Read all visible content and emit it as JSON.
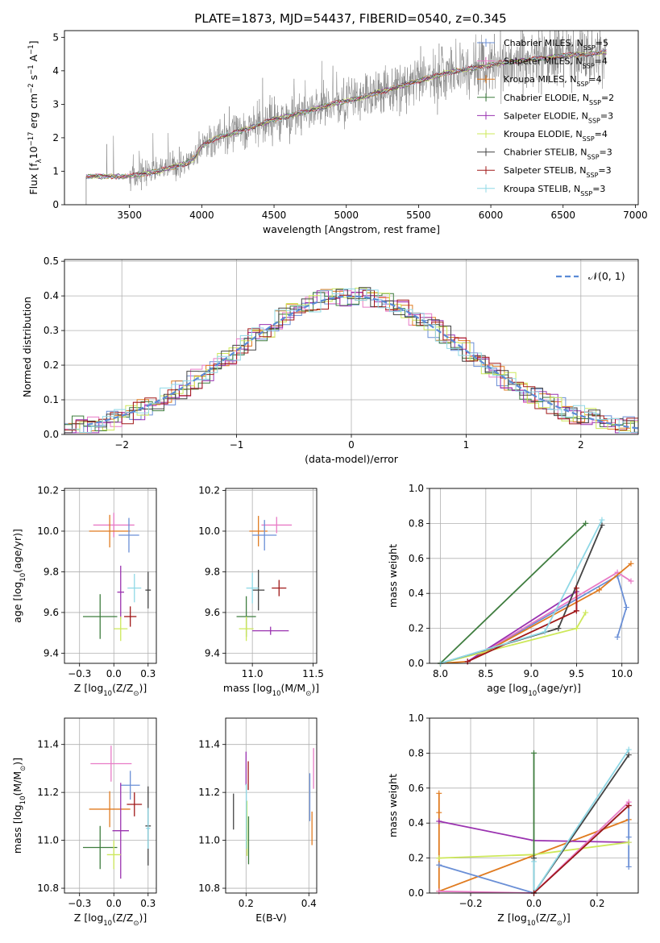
{
  "figure": {
    "title": "PLATE=1873, MJD=54437, FIBERID=0540, z=0.345"
  },
  "colors": {
    "Chabrier MILES": "#6a8fd6",
    "Salpeter MILES": "#e87bc6",
    "Kroupa MILES": "#e07b20",
    "Chabrier ELODIE": "#3f7d3f",
    "Salpeter ELODIE": "#9a32b0",
    "Kroupa ELODIE": "#cde85a",
    "Chabrier STELIB": "#444444",
    "Salpeter STELIB": "#a01818",
    "Kroupa STELIB": "#8fd8e6",
    "data": "#808080",
    "gaussian": "#5b8bd6"
  },
  "chart_data": [
    {
      "id": "spectrum",
      "type": "line",
      "title": "PLATE=1873, MJD=54437, FIBERID=0540, z=0.345",
      "xlabel": "wavelength [Angstrom, rest frame]",
      "ylabel_parts": [
        "Flux [f",
        "λ",
        "10",
        "−17",
        " erg cm",
        "−2",
        " s",
        "−1",
        " A",
        "−1",
        "]"
      ],
      "xlim": [
        3050,
        7020
      ],
      "ylim": [
        0,
        5.2
      ],
      "xticks": [
        3500,
        4000,
        4500,
        5000,
        5500,
        6000,
        6500,
        7000
      ],
      "yticks": [
        0,
        1,
        2,
        3,
        4,
        5
      ],
      "data_range": [
        3200,
        6800
      ],
      "continuum": {
        "x": [
          3200,
          3500,
          3700,
          3900,
          3950,
          4000,
          4100,
          4200,
          4300,
          4500,
          4700,
          4900,
          5100,
          5300,
          5500,
          5700,
          5900,
          6100,
          6300,
          6500,
          6800
        ],
        "y": [
          0.85,
          0.85,
          1.0,
          1.25,
          1.4,
          1.75,
          2.0,
          2.1,
          2.25,
          2.55,
          2.75,
          3.0,
          3.2,
          3.45,
          3.7,
          3.95,
          4.1,
          4.25,
          4.35,
          4.45,
          4.55
        ]
      },
      "legend": [
        {
          "name": "Chabrier MILES",
          "nssp": "5"
        },
        {
          "name": "Salpeter MILES",
          "nssp": "4"
        },
        {
          "name": "Kroupa MILES",
          "nssp": "4"
        },
        {
          "name": "Chabrier ELODIE",
          "nssp": "2"
        },
        {
          "name": "Salpeter ELODIE",
          "nssp": "3"
        },
        {
          "name": "Kroupa ELODIE",
          "nssp": "4"
        },
        {
          "name": "Chabrier STELIB",
          "nssp": "3"
        },
        {
          "name": "Salpeter STELIB",
          "nssp": "3"
        },
        {
          "name": "Kroupa STELIB",
          "nssp": "3"
        }
      ],
      "legend_label": "N",
      "legend_sub": "SSP",
      "legend_placement": "right"
    },
    {
      "id": "residual-histogram",
      "type": "line",
      "xlabel": "(data-model)/error",
      "ylabel": "Normed distribution",
      "xlim": [
        -2.5,
        2.5
      ],
      "ylim": [
        0,
        0.505
      ],
      "xticks": [
        -2,
        -1,
        0,
        1,
        2
      ],
      "yticks": [
        0.0,
        0.1,
        0.2,
        0.3,
        0.4,
        0.5
      ],
      "grid": true,
      "legend": "𝒩(0, 1)",
      "legend_placement": "top-right"
    },
    {
      "id": "age-vs-Z",
      "type": "scatter",
      "xlabel_parts": [
        "Z [log",
        "10",
        "(Z/Z",
        "⊙",
        ")]"
      ],
      "ylabel_parts": [
        "age  [log",
        "10",
        "(age/yr)]"
      ],
      "xlim": [
        -0.36,
        0.31
      ],
      "ylim": [
        9.35,
        10.21
      ],
      "xticks": [
        -0.25,
        0.0,
        0.25
      ],
      "yticks": [
        9.4,
        9.6,
        9.8,
        10.0,
        10.2
      ],
      "grid": true,
      "points": [
        {
          "model": "Salpeter MILES",
          "x": 0.0,
          "y": 10.03,
          "dx": 0.3,
          "dy": 0.12
        },
        {
          "model": "Kroupa MILES",
          "x": -0.03,
          "y": 10.0,
          "dx": 0.3,
          "dy": 0.16
        },
        {
          "model": "Chabrier MILES",
          "x": 0.11,
          "y": 9.98,
          "dx": 0.15,
          "dy": 0.17
        },
        {
          "model": "Chabrier STELIB",
          "x": 0.25,
          "y": 9.71,
          "dx": 0.04,
          "dy": 0.18
        },
        {
          "model": "Kroupa STELIB",
          "x": 0.15,
          "y": 9.72,
          "dx": 0.1,
          "dy": 0.14
        },
        {
          "model": "Salpeter ELODIE",
          "x": 0.05,
          "y": 9.7,
          "dx": 0.05,
          "dy": 0.26
        },
        {
          "model": "Chabrier ELODIE",
          "x": -0.1,
          "y": 9.58,
          "dx": 0.25,
          "dy": 0.22
        },
        {
          "model": "Kroupa ELODIE",
          "x": 0.05,
          "y": 9.52,
          "dx": 0.1,
          "dy": 0.12
        },
        {
          "model": "Salpeter STELIB",
          "x": 0.12,
          "y": 9.58,
          "dx": 0.09,
          "dy": 0.1
        }
      ]
    },
    {
      "id": "age-vs-mass",
      "type": "scatter",
      "xlabel_parts": [
        "mass [log",
        "10",
        "(M/M",
        "⊙",
        ")]"
      ],
      "xlim": [
        10.78,
        11.53
      ],
      "ylim": [
        9.35,
        10.21
      ],
      "xticks": [
        11.0,
        11.5
      ],
      "yticks": [
        9.4,
        9.6,
        9.8,
        10.0,
        10.2
      ],
      "grid": true,
      "points": [
        {
          "model": "Salpeter MILES",
          "x": 11.2,
          "y": 10.03,
          "dx": 0.25,
          "dy": 0.08
        },
        {
          "model": "Kroupa MILES",
          "x": 11.05,
          "y": 10.0,
          "dx": 0.15,
          "dy": 0.15
        },
        {
          "model": "Chabrier MILES",
          "x": 11.1,
          "y": 9.98,
          "dx": 0.2,
          "dy": 0.15
        },
        {
          "model": "Chabrier STELIB",
          "x": 11.05,
          "y": 9.71,
          "dx": 0.1,
          "dy": 0.2
        },
        {
          "model": "Kroupa STELIB",
          "x": 11.0,
          "y": 9.72,
          "dx": 0.1,
          "dy": 0.15
        },
        {
          "model": "Salpeter ELODIE",
          "x": 11.15,
          "y": 9.51,
          "dx": 0.3,
          "dy": 0.04
        },
        {
          "model": "Chabrier ELODIE",
          "x": 10.95,
          "y": 9.58,
          "dx": 0.16,
          "dy": 0.2
        },
        {
          "model": "Kroupa ELODIE",
          "x": 10.95,
          "y": 9.52,
          "dx": 0.12,
          "dy": 0.12
        },
        {
          "model": "Salpeter STELIB",
          "x": 11.22,
          "y": 9.72,
          "dx": 0.12,
          "dy": 0.08
        }
      ]
    },
    {
      "id": "massweight-vs-age",
      "type": "line",
      "xlabel_parts": [
        "age  [log",
        "10",
        "(age/yr)]"
      ],
      "ylabel": "mass weight",
      "xlim": [
        7.88,
        10.18
      ],
      "ylim": [
        0,
        1.0
      ],
      "xticks": [
        8.0,
        8.5,
        9.0,
        9.5,
        10.0
      ],
      "yticks": [
        0.0,
        0.2,
        0.4,
        0.6,
        0.8,
        1.0
      ],
      "grid": true,
      "series": [
        {
          "model": "Chabrier MILES",
          "x": [
            8.3,
            9.95,
            10.05,
            9.95
          ],
          "y": [
            0.01,
            0.5,
            0.32,
            0.15
          ]
        },
        {
          "model": "Salpeter MILES",
          "x": [
            8.3,
            9.95,
            10.1
          ],
          "y": [
            0.01,
            0.52,
            0.47
          ]
        },
        {
          "model": "Kroupa MILES",
          "x": [
            8.0,
            8.3,
            9.75,
            10.1
          ],
          "y": [
            0.0,
            0.01,
            0.42,
            0.57
          ]
        },
        {
          "model": "Chabrier ELODIE",
          "x": [
            8.0,
            9.6
          ],
          "y": [
            0.0,
            0.8
          ]
        },
        {
          "model": "Salpeter ELODIE",
          "x": [
            8.3,
            9.5,
            9.5
          ],
          "y": [
            0.01,
            0.41,
            0.3
          ]
        },
        {
          "model": "Kroupa ELODIE",
          "x": [
            8.0,
            9.5,
            9.6
          ],
          "y": [
            0.0,
            0.2,
            0.29
          ]
        },
        {
          "model": "Chabrier STELIB",
          "x": [
            8.0,
            9.3,
            9.78
          ],
          "y": [
            0.0,
            0.2,
            0.79
          ]
        },
        {
          "model": "Salpeter STELIB",
          "x": [
            8.3,
            9.5,
            9.5
          ],
          "y": [
            0.01,
            0.3,
            0.43
          ]
        },
        {
          "model": "Kroupa STELIB",
          "x": [
            8.0,
            9.15,
            9.78
          ],
          "y": [
            0.0,
            0.18,
            0.82
          ]
        }
      ]
    },
    {
      "id": "mass-vs-Z",
      "type": "scatter",
      "xlabel_parts": [
        "Z [log",
        "10",
        "(Z/Z",
        "⊙",
        ")]"
      ],
      "ylabel_parts": [
        "mass [log",
        "10",
        "(M/M",
        "⊙",
        ")]"
      ],
      "xlim": [
        -0.36,
        0.31
      ],
      "ylim": [
        10.78,
        11.51
      ],
      "xticks": [
        -0.25,
        0.0,
        0.25
      ],
      "yticks": [
        10.8,
        11.0,
        11.2,
        11.4
      ],
      "grid": true,
      "points": [
        {
          "model": "Salpeter MILES",
          "x": -0.02,
          "y": 11.32,
          "dx": 0.3,
          "dy": 0.15
        },
        {
          "model": "Chabrier MILES",
          "x": 0.12,
          "y": 11.23,
          "dx": 0.14,
          "dy": 0.12
        },
        {
          "model": "Kroupa MILES",
          "x": -0.03,
          "y": 11.13,
          "dx": 0.3,
          "dy": 0.15
        },
        {
          "model": "Salpeter STELIB",
          "x": 0.15,
          "y": 11.15,
          "dx": 0.11,
          "dy": 0.1
        },
        {
          "model": "Chabrier STELIB",
          "x": 0.25,
          "y": 11.06,
          "dx": 0.04,
          "dy": 0.33
        },
        {
          "model": "Salpeter ELODIE",
          "x": 0.05,
          "y": 11.04,
          "dx": 0.12,
          "dy": 0.4
        },
        {
          "model": "Kroupa STELIB",
          "x": 0.25,
          "y": 11.05,
          "dx": 0.03,
          "dy": 0.17
        },
        {
          "model": "Chabrier ELODIE",
          "x": -0.1,
          "y": 10.97,
          "dx": 0.25,
          "dy": 0.18
        },
        {
          "model": "Kroupa ELODIE",
          "x": 0.0,
          "y": 10.94,
          "dx": 0.1,
          "dy": 0.12
        }
      ]
    },
    {
      "id": "mass-vs-ebv",
      "type": "scatter",
      "xlabel": "E(B-V)",
      "xlim": [
        0.135,
        0.425
      ],
      "ylim": [
        10.78,
        11.51
      ],
      "xticks": [
        0.2,
        0.4
      ],
      "yticks": [
        10.8,
        11.0,
        11.2,
        11.4
      ],
      "grid": true,
      "points": [
        {
          "model": "Chabrier STELIB",
          "x": 0.16,
          "y": 11.12,
          "dy": 0.15
        },
        {
          "model": "Salpeter ELODIE",
          "x": 0.2,
          "y": 11.3,
          "dy": 0.14
        },
        {
          "model": "Salpeter STELIB",
          "x": 0.207,
          "y": 11.27,
          "dy": 0.12
        },
        {
          "model": "Kroupa ELODIE",
          "x": 0.203,
          "y": 11.05,
          "dy": 0.23
        },
        {
          "model": "Chabrier ELODIE",
          "x": 0.208,
          "y": 11.0,
          "dy": 0.2
        },
        {
          "model": "Kroupa STELIB",
          "x": 0.201,
          "y": 11.1,
          "dy": 0.27
        },
        {
          "model": "Chabrier MILES",
          "x": 0.403,
          "y": 11.18,
          "dy": 0.2
        },
        {
          "model": "Kroupa MILES",
          "x": 0.41,
          "y": 11.05,
          "dy": 0.14
        },
        {
          "model": "Salpeter MILES",
          "x": 0.415,
          "y": 11.3,
          "dy": 0.17
        }
      ]
    },
    {
      "id": "massweight-vs-Z",
      "type": "line",
      "xlabel_parts": [
        "Z [log",
        "10",
        "(Z/Z",
        "⊙",
        ")]"
      ],
      "ylabel": "mass weight",
      "xlim": [
        -0.33,
        0.33
      ],
      "ylim": [
        0,
        1.0
      ],
      "xticks": [
        -0.2,
        0.0,
        0.2
      ],
      "yticks": [
        0.0,
        0.2,
        0.4,
        0.6,
        0.8,
        1.0
      ],
      "grid": true,
      "series": [
        {
          "model": "Kroupa MILES",
          "x": [
            -0.3,
            -0.3,
            -0.3,
            0.3
          ],
          "y": [
            0.57,
            0.46,
            0.01,
            0.42
          ]
        },
        {
          "model": "Salpeter ELODIE",
          "x": [
            -0.3,
            0.0,
            0.3
          ],
          "y": [
            0.41,
            0.3,
            0.29
          ]
        },
        {
          "model": "Chabrier MILES",
          "x": [
            -0.3,
            0.0,
            0.3,
            0.3,
            0.3
          ],
          "y": [
            0.16,
            0.0,
            0.5,
            0.32,
            0.15
          ]
        },
        {
          "model": "Kroupa ELODIE",
          "x": [
            -0.3,
            0.0,
            0.3
          ],
          "y": [
            0.2,
            0.22,
            0.29
          ]
        },
        {
          "model": "Salpeter MILES",
          "x": [
            -0.3,
            0.0,
            0.3
          ],
          "y": [
            0.01,
            0.0,
            0.52
          ]
        },
        {
          "model": "Chabrier ELODIE",
          "x": [
            0.0,
            0.0
          ],
          "y": [
            0.0,
            0.8
          ]
        },
        {
          "model": "Chabrier STELIB",
          "x": [
            0.0,
            0.0,
            0.3
          ],
          "y": [
            0.2,
            0.0,
            0.79
          ]
        },
        {
          "model": "Kroupa STELIB",
          "x": [
            0.0,
            0.0,
            0.3
          ],
          "y": [
            0.18,
            0.0,
            0.82
          ]
        },
        {
          "model": "Salpeter STELIB",
          "x": [
            0.0,
            0.3
          ],
          "y": [
            0.0,
            0.5
          ]
        }
      ]
    }
  ]
}
